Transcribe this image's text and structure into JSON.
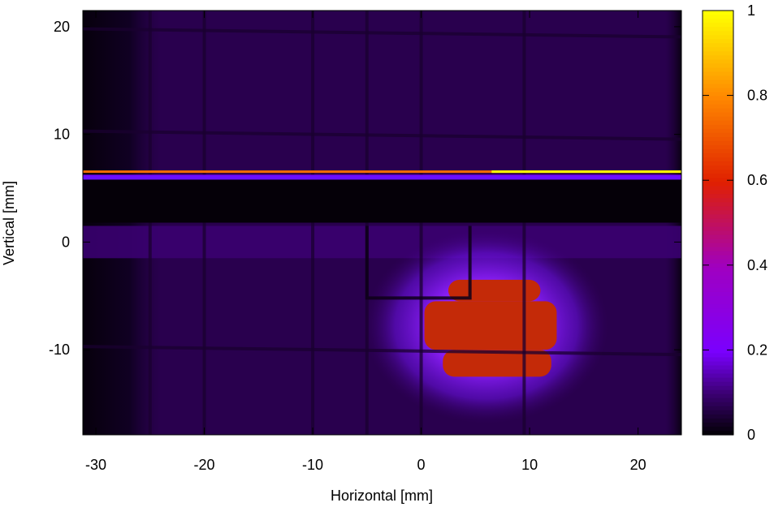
{
  "chart_data": {
    "type": "heatmap",
    "title": "",
    "xlabel": "Horizontal [mm]",
    "ylabel": "Vertical [mm]",
    "xlim": [
      -31.2,
      24.0
    ],
    "ylim": [
      -17.9,
      21.5
    ],
    "xticks": [
      -30,
      -20,
      -10,
      0,
      10,
      20
    ],
    "yticks": [
      -10,
      0,
      10,
      20
    ],
    "colorbar": {
      "min": 0,
      "max": 1,
      "ticks": [
        0,
        0.2,
        0.4,
        0.6,
        0.8,
        1
      ],
      "tick_labels": [
        "0",
        "0.2",
        "0.4",
        "0.6",
        "0.8",
        "1"
      ],
      "colormap": "gnuplot-pm3d-black-purple-red-yellow",
      "stops": [
        {
          "v": 0.0,
          "color": "#000000"
        },
        {
          "v": 0.1,
          "color": "#3a0070"
        },
        {
          "v": 0.2,
          "color": "#7a00ff"
        },
        {
          "v": 0.4,
          "color": "#a000c0"
        },
        {
          "v": 0.6,
          "color": "#e02000"
        },
        {
          "v": 0.8,
          "color": "#ff8800"
        },
        {
          "v": 1.0,
          "color": "#ffff00"
        }
      ]
    },
    "field": {
      "background_level": 0.07,
      "edge_dark_x_max": -24,
      "bright_lines": [
        {
          "y": 6.5,
          "x_from": -31.2,
          "x_to": 24.0,
          "level": 0.75
        },
        {
          "y": 6.5,
          "x_from": 6.5,
          "x_to": 24.0,
          "level": 1.0
        },
        {
          "y": 6.1,
          "x_from": -31.2,
          "x_to": 24.0,
          "level": 0.2
        }
      ],
      "dark_band": {
        "y_from": 1.8,
        "y_to": 5.8
      },
      "faint_band": {
        "y_from": -1.5,
        "y_to": 1.5,
        "level": 0.1
      },
      "grid_lines_x": [
        -25,
        -20,
        -10,
        -5,
        0,
        9.5
      ],
      "grid_lines_y": [
        19.5,
        10,
        -10
      ],
      "hot_spot": {
        "center_x": 6,
        "center_y": -7.8,
        "halo_level": 0.3,
        "core_level": 0.5,
        "core_regions": [
          {
            "x_from": 0.3,
            "x_to": 12.5,
            "y_from": -10,
            "y_to": -5.5
          },
          {
            "x_from": 2,
            "x_to": 12,
            "y_from": -12.5,
            "y_to": -10
          },
          {
            "x_from": 2.5,
            "x_to": 11,
            "y_from": -5.5,
            "y_to": -3.5
          }
        ]
      },
      "shadow_bracket": {
        "x_left": -5,
        "x_right": 4.5,
        "y_top": 1.5,
        "y_bottom": -5.2
      }
    }
  }
}
